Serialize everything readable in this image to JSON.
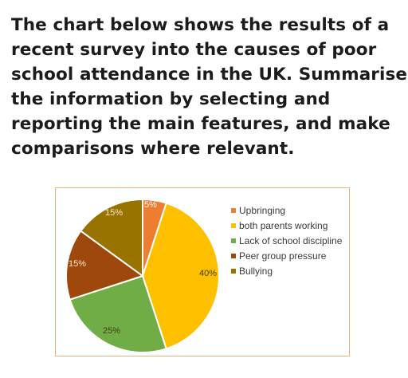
{
  "prompt": {
    "lines": [
      "The chart below shows the results of a",
      "recent survey into the causes of poor",
      "school attendance in the UK. Summarise",
      "the information by selecting and",
      "reporting the main features, and make",
      "comparisons where relevant."
    ]
  },
  "chart_data": {
    "type": "pie",
    "title": "",
    "legend_position": "right",
    "slices": [
      {
        "label": "Upbringing",
        "value": 5,
        "display": "5%",
        "color": "#ed7d31"
      },
      {
        "label": "both parents working",
        "value": 40,
        "display": "40%",
        "color": "#ffc000"
      },
      {
        "label": "Lack of school discipline",
        "value": 25,
        "display": "25%",
        "color": "#70ad47"
      },
      {
        "label": "Peer group pressure",
        "value": 15,
        "display": "15%",
        "color": "#9e480e"
      },
      {
        "label": "Bullying",
        "value": 15,
        "display": "15%",
        "color": "#997300"
      }
    ]
  }
}
